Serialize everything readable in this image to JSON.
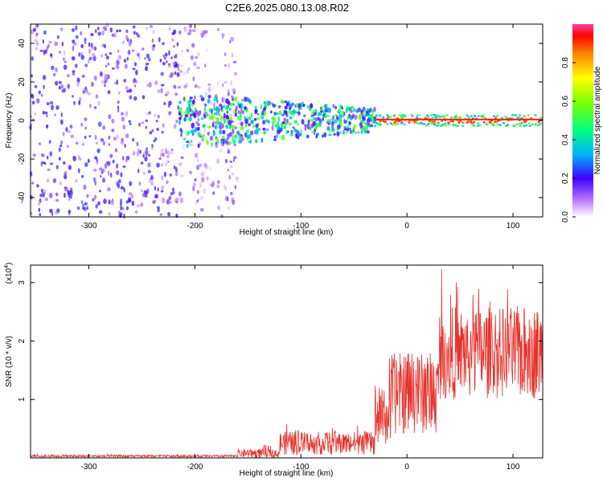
{
  "title": "C2E6.2025.080.13.08.R02",
  "chart_data": [
    {
      "type": "heatmap",
      "xlabel": "Height of straight line (km)",
      "ylabel": "Frequency (Hz)",
      "xlim": [
        -355,
        128
      ],
      "ylim": [
        -50,
        50
      ],
      "xticks": [
        -300,
        -200,
        -100,
        0,
        100
      ],
      "yticks": [
        -40,
        -20,
        0,
        20,
        40
      ],
      "colorbar": {
        "label": "Normalized spectral amplitude",
        "range": [
          0,
          1
        ],
        "ticks": [
          0.0,
          0.2,
          0.4,
          0.6,
          0.8
        ],
        "tick_labels": [
          "0.0",
          "0.2",
          "0.4",
          "0.6",
          "0.8"
        ]
      },
      "description_regions": [
        {
          "x": [
            -355,
            -215
          ],
          "freq": [
            -50,
            50
          ],
          "amplitude": [
            0.05,
            0.25
          ]
        },
        {
          "x": [
            -215,
            -160
          ],
          "freq": [
            -50,
            50
          ],
          "amplitude": [
            0.02,
            0.15
          ]
        },
        {
          "x": [
            -215,
            -30
          ],
          "freq": [
            -15,
            15
          ],
          "amplitude": [
            0.1,
            0.6
          ]
        },
        {
          "x": [
            -30,
            128
          ],
          "freq": [
            -3,
            3
          ],
          "amplitude": [
            0.3,
            0.95
          ]
        }
      ]
    },
    {
      "type": "line",
      "xlabel": "Height of straight line (km)",
      "ylabel": "SNR (10 * v/v)",
      "y_scale_label": "(x10",
      "y_scale_exp": "4",
      "y_scale_close": ")",
      "xlim": [
        -355,
        128
      ],
      "ylim": [
        0,
        3.3
      ],
      "xticks": [
        -300,
        -200,
        -100,
        0,
        100
      ],
      "yticks": [
        1,
        2,
        3
      ],
      "line_color": "#e8302a",
      "series": [
        {
          "segments": [
            {
              "x": [
                -355,
                -160
              ],
              "y_mean": 0.03,
              "y_spread": 0.02
            },
            {
              "x": [
                -160,
                -120
              ],
              "y_mean": 0.08,
              "y_spread": 0.08
            },
            {
              "x": [
                -120,
                -30
              ],
              "y_mean": 0.25,
              "y_spread": 0.2
            },
            {
              "x": [
                -30,
                -15
              ],
              "y_mean": 0.7,
              "y_spread": 0.5
            },
            {
              "x": [
                -15,
                30
              ],
              "y_mean": 1.1,
              "y_spread": 0.7
            },
            {
              "x": [
                30,
                128
              ],
              "y_mean": 1.8,
              "y_spread": 0.8
            }
          ]
        }
      ]
    }
  ]
}
